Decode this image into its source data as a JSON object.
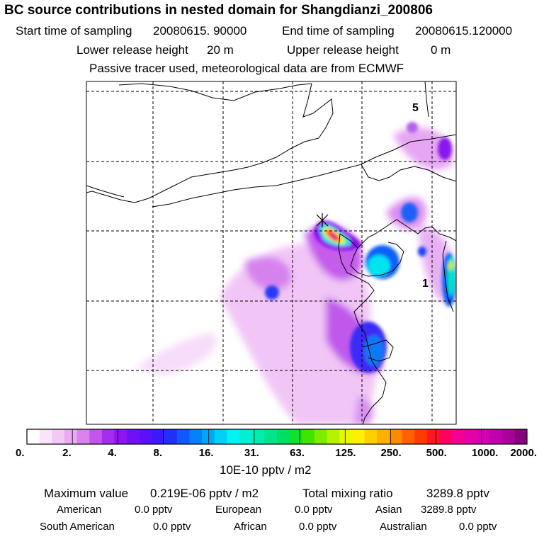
{
  "header": {
    "title": "BC  source contributions in nested domain for Shangdianzi_200806",
    "start_label": "Start time of sampling",
    "start_value": "20080615. 90000",
    "end_label": "End time of sampling",
    "end_value": "20080615.120000",
    "lower_label": "Lower release height",
    "lower_value": "20 m",
    "upper_label": "Upper release height",
    "upper_value": "0 m",
    "note": "Passive tracer used, meteorological data are from ECMWF"
  },
  "map": {
    "labels": [
      {
        "text": "5"
      },
      {
        "text": "1"
      }
    ]
  },
  "colorbar": {
    "ticks": [
      "0.",
      "2.",
      "4.",
      "8.",
      "16.",
      "31.",
      "63.",
      "125.",
      "250.",
      "500.",
      "1000.",
      "2000."
    ],
    "colors": [
      "#ffffff",
      "#fbe4fb",
      "#f3c8f6",
      "#eba8f3",
      "#d982ee",
      "#c454ec",
      "#a82cec",
      "#8e14f0",
      "#7010f4",
      "#5a10f8",
      "#3c18fc",
      "#2030f8",
      "#1058fc",
      "#0480f8",
      "#00a8f8",
      "#00d0f8",
      "#00f4f4",
      "#00f0d4",
      "#00ecb0",
      "#00e48c",
      "#00e060",
      "#10e030",
      "#40e400",
      "#7cec00",
      "#b4f400",
      "#e8f800",
      "#fff000",
      "#ffd000",
      "#ffb000",
      "#ff8c00",
      "#ff6000",
      "#ff3c00",
      "#ff1820",
      "#ff0060",
      "#f40090",
      "#e400a8",
      "#d400b4",
      "#c000b0",
      "#a80098",
      "#880080"
    ],
    "unit": "10E-10 pptv / m2"
  },
  "stats": {
    "max_label": "Maximum value",
    "max_value": "0.219E-06 pptv / m2",
    "total_label": "Total mixing ratio",
    "total_value": "3289.8 pptv",
    "regions": [
      {
        "name": "American",
        "value": "0.0 pptv"
      },
      {
        "name": "European",
        "value": "0.0 pptv"
      },
      {
        "name": "Asian",
        "value": "3289.8 pptv"
      },
      {
        "name": "South American",
        "value": "0.0 pptv"
      },
      {
        "name": "African",
        "value": "0.0 pptv"
      },
      {
        "name": "Australian",
        "value": "0.0 pptv"
      }
    ]
  }
}
